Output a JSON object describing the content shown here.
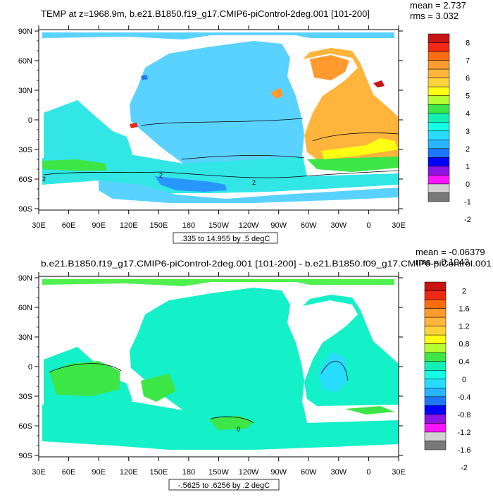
{
  "panels": [
    {
      "title": "TEMP at z=1968.9m, b.e21.B1850.f19_g17.CMIP6-piControl-2deg.001 [101-200]",
      "stats": [
        "mean = 2.737",
        "rms = 3.032"
      ],
      "range_label": ".335 to 14.955 by .5 degC",
      "lat_ticks": [
        "90N",
        "60N",
        "30N",
        "0",
        "30S",
        "60S",
        "90S"
      ],
      "lon_ticks": [
        "30E",
        "60E",
        "90E",
        "120E",
        "150E",
        "180",
        "150W",
        "120W",
        "90W",
        "60W",
        "30W",
        "0",
        "30E"
      ],
      "contour_labels": [
        "2",
        "2",
        "2"
      ],
      "colorbar": {
        "labels": [
          "8",
          "7",
          "6",
          "5",
          "4",
          "3",
          "2",
          "1",
          "0",
          "-1",
          "-2"
        ],
        "colors": [
          "#c81414",
          "#f02814",
          "#ff6c10",
          "#ff9b2e",
          "#ffb43c",
          "#ffd23c",
          "#ffff14",
          "#b4ff32",
          "#3ce646",
          "#14f0b4",
          "#14ffe6",
          "#28dcff",
          "#28b4ff",
          "#1e78ff",
          "#0000ff",
          "#8c14e6",
          "#ff14ff",
          "#d2d2d2",
          "#787878"
        ]
      }
    },
    {
      "title": "b.e21.B1850.f19_g17.CMIP6-piControl-2deg.001 [101-200] - b.e21.B1850.f09_g17.CMIP6-piControl.001",
      "stats": [
        "mean = -0.06379",
        "rms = 0.1043"
      ],
      "range_label": "-.5625 to .6256 by .2 degC",
      "lat_ticks": [
        "90N",
        "60N",
        "30N",
        "0",
        "30S",
        "60S",
        "90S"
      ],
      "lon_ticks": [
        "30E",
        "60E",
        "90E",
        "120E",
        "150E",
        "180",
        "150W",
        "120W",
        "90W",
        "60W",
        "30W",
        "0",
        "30E"
      ],
      "contour_labels": [
        "0"
      ],
      "colorbar": {
        "labels": [
          "2",
          "1.6",
          "1.2",
          "0.8",
          "0.4",
          "0",
          "-0.4",
          "-0.8",
          "-1.2",
          "-1.6",
          "-2"
        ],
        "colors": [
          "#c81414",
          "#f02814",
          "#ff6c10",
          "#ff9b2e",
          "#ffb43c",
          "#ffd23c",
          "#ffff14",
          "#b4ff32",
          "#3ce646",
          "#14f0b4",
          "#14ffe6",
          "#28dcff",
          "#28b4ff",
          "#1e78ff",
          "#0000ff",
          "#8c14e6",
          "#ff14ff",
          "#d2d2d2",
          "#787878"
        ]
      }
    }
  ]
}
